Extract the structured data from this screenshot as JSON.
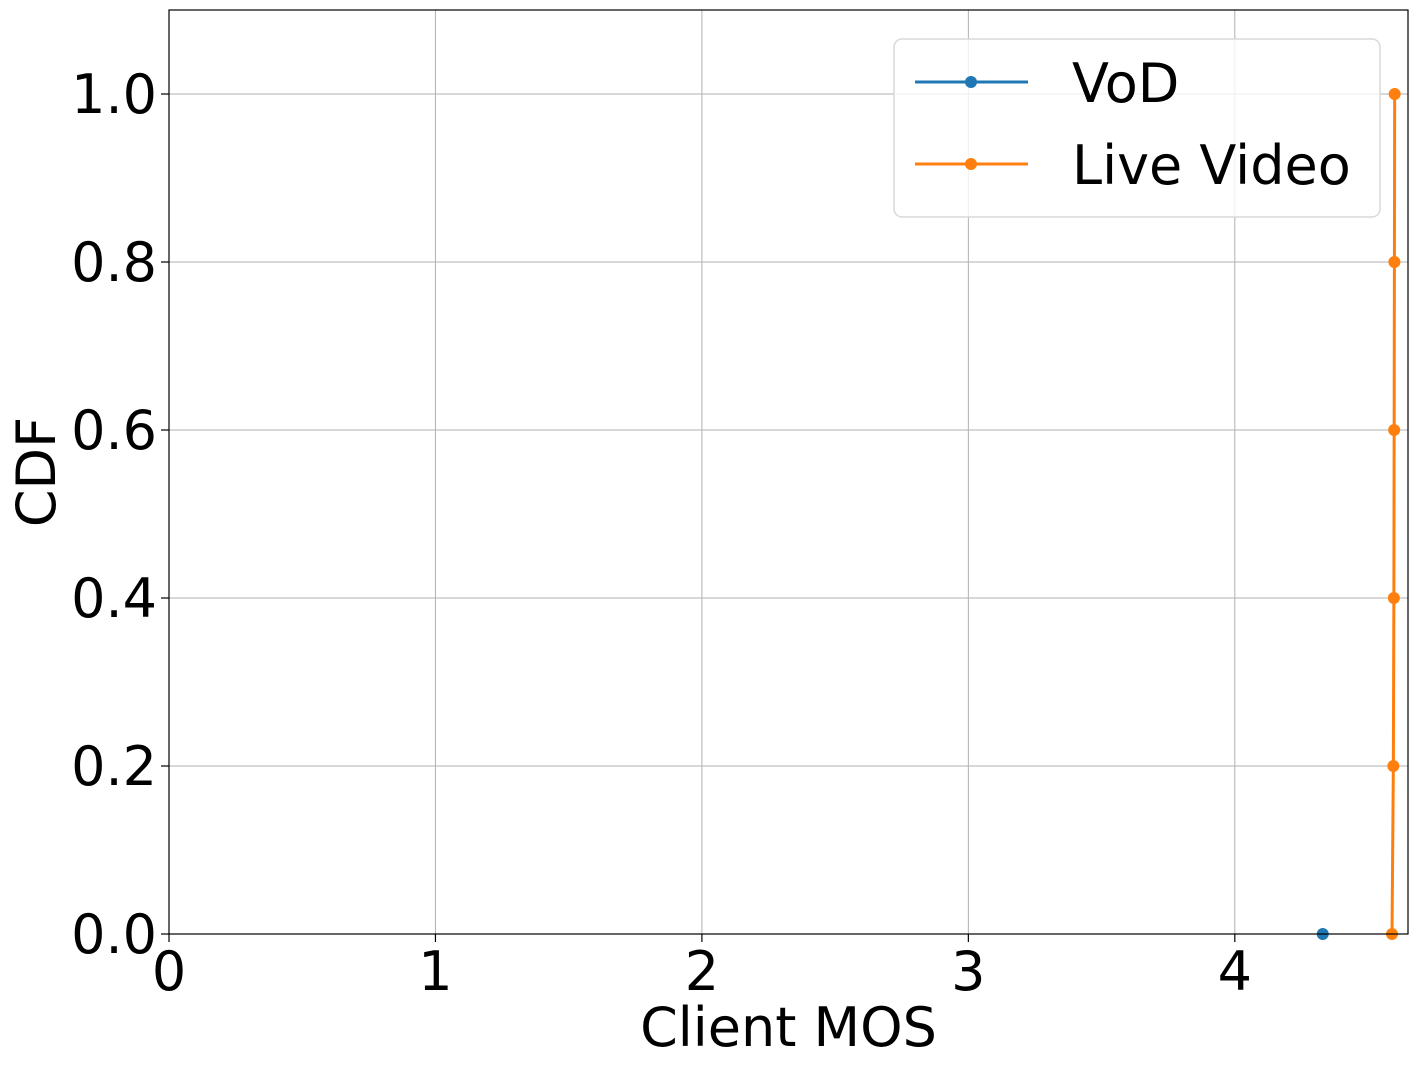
{
  "chart_data": {
    "type": "line",
    "xlabel": "Client MOS",
    "ylabel": "CDF",
    "xlim": [
      0,
      4.65
    ],
    "ylim": [
      0,
      1.1
    ],
    "xticks": [
      0,
      1,
      2,
      3,
      4
    ],
    "xtick_labels": [
      "0",
      "1",
      "2",
      "3",
      "4"
    ],
    "yticks": [
      0.0,
      0.2,
      0.4,
      0.6,
      0.8,
      1.0
    ],
    "ytick_labels": [
      "0.0",
      "0.2",
      "0.4",
      "0.6",
      "0.8",
      "1.0"
    ],
    "grid": true,
    "legend_position": "top-right",
    "series": [
      {
        "name": "VoD",
        "color": "#1f77b4",
        "x": [
          4.33
        ],
        "y": [
          0.0
        ]
      },
      {
        "name": "Live Video",
        "color": "#ff7f0e",
        "x": [
          4.59,
          4.595,
          4.597,
          4.598,
          4.599,
          4.6
        ],
        "y": [
          0.0,
          0.2,
          0.4,
          0.6,
          0.8,
          1.0
        ]
      }
    ]
  }
}
